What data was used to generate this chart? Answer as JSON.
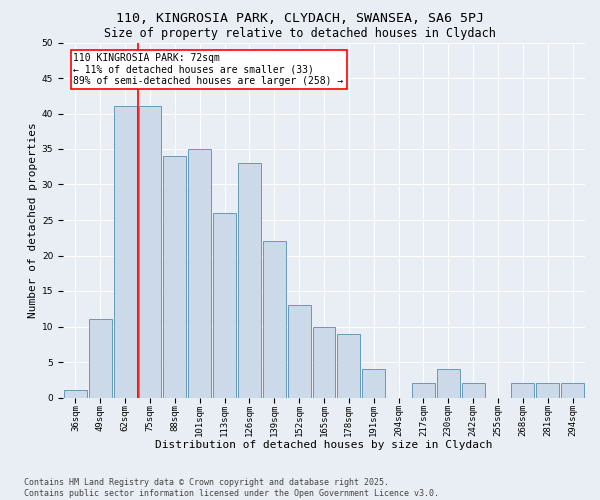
{
  "title1": "110, KINGROSIA PARK, CLYDACH, SWANSEA, SA6 5PJ",
  "title2": "Size of property relative to detached houses in Clydach",
  "xlabel": "Distribution of detached houses by size in Clydach",
  "ylabel": "Number of detached properties",
  "categories": [
    "36sqm",
    "49sqm",
    "62sqm",
    "75sqm",
    "88sqm",
    "101sqm",
    "113sqm",
    "126sqm",
    "139sqm",
    "152sqm",
    "165sqm",
    "178sqm",
    "191sqm",
    "204sqm",
    "217sqm",
    "230sqm",
    "242sqm",
    "255sqm",
    "268sqm",
    "281sqm",
    "294sqm"
  ],
  "values": [
    1,
    11,
    41,
    41,
    34,
    35,
    26,
    33,
    22,
    13,
    10,
    9,
    4,
    0,
    2,
    4,
    2,
    0,
    2,
    2,
    2
  ],
  "bar_color": "#ccd9e8",
  "bar_edge_color": "#6699bb",
  "highlight_line_color": "red",
  "annotation_text": "110 KINGROSIA PARK: 72sqm\n← 11% of detached houses are smaller (33)\n89% of semi-detached houses are larger (258) →",
  "annotation_box_color": "white",
  "annotation_box_edge_color": "red",
  "ylim": [
    0,
    50
  ],
  "yticks": [
    0,
    5,
    10,
    15,
    20,
    25,
    30,
    35,
    40,
    45,
    50
  ],
  "footer_text": "Contains HM Land Registry data © Crown copyright and database right 2025.\nContains public sector information licensed under the Open Government Licence v3.0.",
  "background_color": "#e8eef4",
  "grid_color": "white",
  "title_fontsize": 9.5,
  "subtitle_fontsize": 8.5,
  "axis_label_fontsize": 8,
  "tick_fontsize": 6.5,
  "annotation_fontsize": 7,
  "footer_fontsize": 6
}
